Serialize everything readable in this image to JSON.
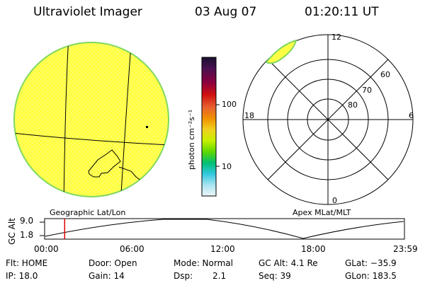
{
  "header": {
    "instrument": "Ultraviolet Imager",
    "date": "03 Aug 07",
    "time": "01:20:11 UT"
  },
  "colorbar": {
    "label": "photon cm⁻²s⁻¹",
    "ticks": [
      "100",
      "10"
    ],
    "colors": [
      "#2a1640",
      "#5a1c5a",
      "#8a0030",
      "#c00018",
      "#e8503c",
      "#f08a00",
      "#f0d020",
      "#c8f000",
      "#60d800",
      "#00c080",
      "#30d0e0",
      "#a0e8f0",
      "#e8f4f8"
    ]
  },
  "geo_panel": {
    "label": "Geographic Lat/Lon",
    "fill_color": "#ffff44",
    "edge_color": "#80d860"
  },
  "polar_panel": {
    "label": "Apex MLat/MLT",
    "mlt_labels": {
      "top": "12",
      "left": "18",
      "right": "6",
      "bottom": "0"
    },
    "lat_labels": [
      "60",
      "70",
      "80"
    ]
  },
  "timeline": {
    "ylabel": "GC Alt",
    "ymax": "9.0",
    "ymin": "1.8",
    "times": [
      "00:00",
      "06:00",
      "12:00",
      "18:00",
      "23:59"
    ],
    "current_time_fraction": 0.0557,
    "marker_color": "#e00000"
  },
  "info": {
    "flt": "Flt: HOME",
    "ip": "IP: 18.0",
    "door": "Door: Open",
    "gain": "Gain: 14",
    "mode": "Mode: Normal",
    "dsp": "Dsp:",
    "dsp_val": "2.1",
    "gc_alt": "GC Alt: 4.1 Re",
    "seq": "Seq: 39",
    "glat": "GLat: −35.9",
    "glon": "GLon: 183.5"
  }
}
